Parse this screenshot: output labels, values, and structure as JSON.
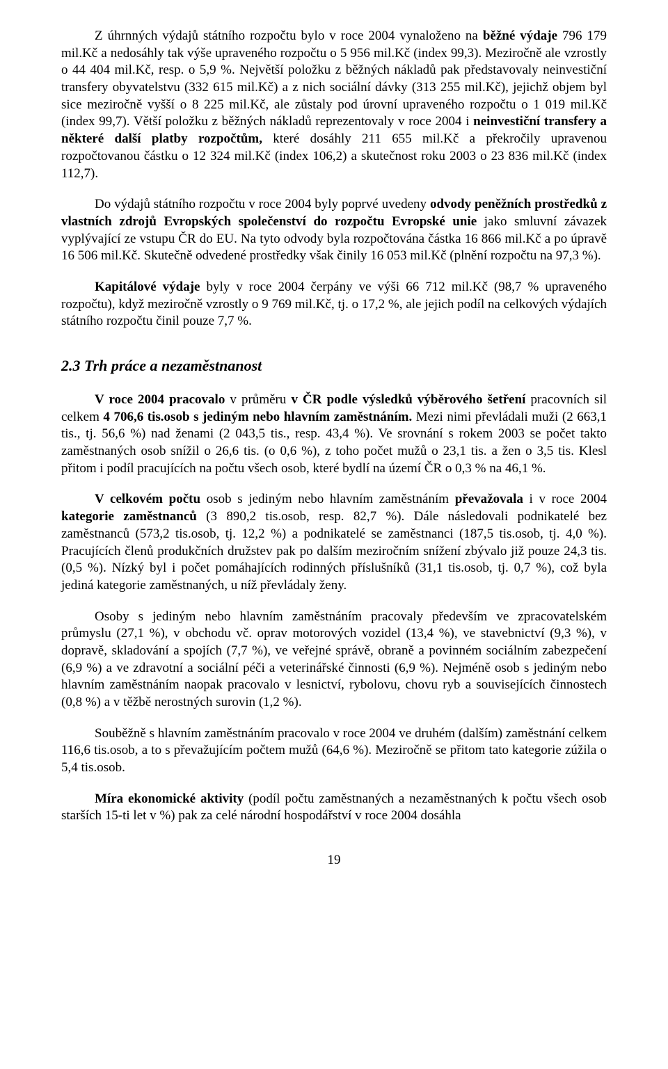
{
  "paragraphs": {
    "p1": "Z úhrnných výdajů státního rozpočtu bylo v roce 2004 vynaloženo na <b>běžné výdaje</b> 796 179 mil.Kč a nedosáhly tak výše upraveného rozpočtu o 5 956 mil.Kč (index 99,3). Meziročně ale vzrostly o 44 404 mil.Kč, resp. o 5,9 %. Největší položku z běžných nákladů pak představovaly neinvestiční transfery obyvatelstvu (332 615 mil.Kč) a z nich sociální dávky (313 255 mil.Kč), jejichž objem byl sice meziročně vyšší o 8 225 mil.Kč, ale zůstaly pod úrovní upraveného rozpočtu o 1 019 mil.Kč (index 99,7). Větší položku z běžných nákladů reprezentovaly v roce 2004 i <b>neinvestiční transfery a některé další platby rozpočtům,</b> které dosáhly 211 655 mil.Kč a překročily upravenou rozpočtovanou částku o 12 324 mil.Kč (index 106,2) a skutečnost roku 2003 o 23 836 mil.Kč (index 112,7).",
    "p2": "Do výdajů státního rozpočtu v roce 2004 byly poprvé uvedeny <b>odvody peněžních prostředků z vlastních zdrojů Evropských společenství do rozpočtu Evropské unie</b> jako smluvní závazek vyplývající ze vstupu ČR do EU. Na tyto odvody byla rozpočtována částka 16 866 mil.Kč a po úpravě 16 506 mil.Kč. Skutečně odvedené prostředky však činily 16 053 mil.Kč (plnění rozpočtu na 97,3 %).",
    "p3": "<b>Kapitálové výdaje</b> byly v roce 2004 čerpány ve výši 66 712 mil.Kč (98,7 % upraveného rozpočtu), když meziročně vzrostly o 9 769 mil.Kč, tj. o 17,2 %, ale jejich podíl na celkových výdajích státního rozpočtu činil pouze 7,7 %.",
    "p4": "<b>V roce 2004 pracovalo</b> v průměru <b>v ČR podle výsledků výběrového šetření</b> pracovních sil celkem <b>4 706,6 tis.osob s jediným nebo hlavním zaměstnáním.</b> Mezi nimi převládali muži (2 663,1 tis., tj. 56,6 %) nad ženami (2 043,5 tis., resp. 43,4 %). Ve srovnání s rokem 2003 se počet takto zaměstnaných osob snížil o 26,6 tis. (o 0,6 %), z toho počet mužů o 23,1 tis. a žen o 3,5 tis. Klesl přitom i podíl pracujících na počtu všech osob, které bydlí na území ČR o 0,3 % na 46,1 %.",
    "p5": "<b>V celkovém počtu</b> osob s jediným nebo hlavním zaměstnáním <b>převažovala</b> i v roce 2004 <b>kategorie zaměstnanců</b> (3 890,2 tis.osob, resp. 82,7 %). Dále následovali podnikatelé bez zaměstnanců (573,2 tis.osob, tj. 12,2 %) a podnikatelé se zaměstnanci (187,5 tis.osob, tj. 4,0 %). Pracujících členů produkčních družstev pak po dalším meziročním snížení zbývalo již pouze 24,3 tis. (0,5 %). Nízký byl i počet pomáhajících rodinných příslušníků (31,1 tis.osob, tj. 0,7 %), což byla jediná kategorie zaměstnaných, u níž převládaly ženy.",
    "p6": "Osoby s jediným nebo hlavním zaměstnáním pracovaly především ve zpracovatelském průmyslu (27,1 %), v obchodu vč. oprav motorových vozidel (13,4 %), ve stavebnictví (9,3 %), v dopravě, skladování a spojích (7,7 %), ve veřejné správě, obraně a povinném sociálním zabezpečení (6,9 %) a ve zdravotní a sociální péči a veterinářské činnosti (6,9 %). Nejméně osob s jediným nebo hlavním zaměstnáním naopak pracovalo v lesnictví, rybolovu, chovu ryb a souvisejících činnostech (0,8 %) a v těžbě nerostných surovin (1,2 %).",
    "p7": "Souběžně s hlavním zaměstnáním pracovalo v roce 2004 ve druhém (dalším) zaměstnání celkem 116,6 tis.osob, a to s převažujícím počtem mužů (64,6 %). Meziročně se přitom tato kategorie zúžila o 5,4 tis.osob.",
    "p8": "<b>Míra ekonomické aktivity</b> (podíl počtu zaměstnaných a nezaměstnaných k počtu všech osob starších 15-ti let v %) pak za celé národní hospodářství v roce 2004 dosáhla"
  },
  "heading_2_3": "2.3 Trh práce a nezaměstnanost",
  "page_number": "19"
}
